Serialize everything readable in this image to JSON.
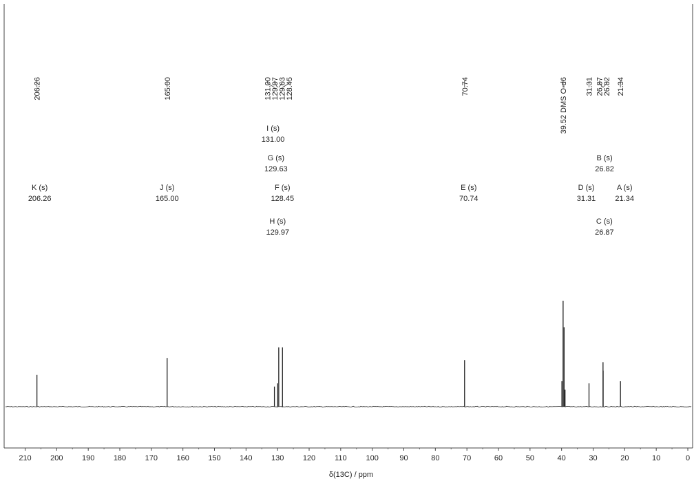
{
  "chart_data": {
    "type": "nmr-spectrum",
    "title": "",
    "xlabel": "δ(13C) / ppm",
    "ylabel": "",
    "xlim": [
      212,
      -2
    ],
    "axis_reversed": true,
    "grid": false,
    "x_ticks": [
      210,
      200,
      190,
      180,
      170,
      160,
      150,
      140,
      130,
      120,
      110,
      100,
      90,
      80,
      70,
      60,
      50,
      40,
      30,
      20,
      10,
      0
    ],
    "peaks": [
      {
        "shift": 206.26,
        "intensity": 0.3
      },
      {
        "shift": 165.0,
        "intensity": 0.46
      },
      {
        "shift": 131.0,
        "intensity": 0.19
      },
      {
        "shift": 129.97,
        "intensity": 0.22
      },
      {
        "shift": 129.63,
        "intensity": 0.56
      },
      {
        "shift": 128.45,
        "intensity": 0.56
      },
      {
        "shift": 70.74,
        "intensity": 0.44
      },
      {
        "shift": 39.9,
        "intensity": 0.24
      },
      {
        "shift": 39.52,
        "intensity": 1.0
      },
      {
        "shift": 39.2,
        "intensity": 0.75
      },
      {
        "shift": 38.9,
        "intensity": 0.16
      },
      {
        "shift": 31.31,
        "intensity": 0.22
      },
      {
        "shift": 26.87,
        "intensity": 0.42
      },
      {
        "shift": 26.82,
        "intensity": 0.34
      },
      {
        "shift": 21.34,
        "intensity": 0.24
      }
    ],
    "peak_labels": [
      {
        "shift": 206.26,
        "text": "206.26"
      },
      {
        "shift": 165.0,
        "text": "165.00"
      },
      {
        "shift": 131.0,
        "text": "131.00"
      },
      {
        "shift": 129.97,
        "text": "129.97"
      },
      {
        "shift": 129.63,
        "text": "129.63"
      },
      {
        "shift": 128.45,
        "text": "128.45"
      },
      {
        "shift": 70.74,
        "text": "70.74"
      },
      {
        "shift": 39.52,
        "text": "39.52 DMS O-d6"
      },
      {
        "shift": 31.31,
        "text": "31.31"
      },
      {
        "shift": 26.87,
        "text": "26.87"
      },
      {
        "shift": 26.82,
        "text": "26.82"
      },
      {
        "shift": 21.34,
        "text": "21.34"
      }
    ],
    "assignments": [
      {
        "shift": 206.26,
        "label": "K (s)",
        "value": "206.26"
      },
      {
        "shift": 165.0,
        "label": "J (s)",
        "value": "165.00"
      },
      {
        "shift": 131.0,
        "label": "I (s)",
        "value": "131.00"
      },
      {
        "shift": 129.63,
        "label": "G (s)",
        "value": "129.63"
      },
      {
        "shift": 128.45,
        "label": "F (s)",
        "value": "128.45"
      },
      {
        "shift": 129.97,
        "label": "H (s)",
        "value": "129.97"
      },
      {
        "shift": 70.74,
        "label": "E (s)",
        "value": "70.74"
      },
      {
        "shift": 26.82,
        "label": "B (s)",
        "value": "26.82"
      },
      {
        "shift": 31.31,
        "label": "D (s)",
        "value": "31.31"
      },
      {
        "shift": 21.34,
        "label": "A (s)",
        "value": "21.34"
      },
      {
        "shift": 26.87,
        "label": "C (s)",
        "value": "26.87"
      }
    ]
  }
}
